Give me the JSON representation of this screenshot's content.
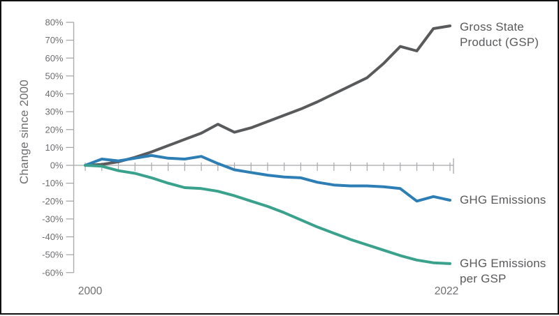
{
  "chart_data": {
    "type": "line",
    "title": "",
    "ylabel": "Change since 2000",
    "xlabel": "",
    "ylim": [
      -60,
      80
    ],
    "grid": false,
    "legend_position": "right-annotations",
    "x": [
      2000,
      2001,
      2002,
      2003,
      2004,
      2005,
      2006,
      2007,
      2008,
      2009,
      2010,
      2011,
      2012,
      2013,
      2014,
      2015,
      2016,
      2017,
      2018,
      2019,
      2020,
      2021,
      2022
    ],
    "x_axis_labels": [
      "2000",
      "2022"
    ],
    "y_tick_labels": [
      "80%",
      "70%",
      "60%",
      "50%",
      "40%",
      "30%",
      "20%",
      "10%",
      "0%",
      "-10%",
      "-20%",
      "-30%",
      "-40%",
      "-50%",
      "-60%"
    ],
    "y_tick_values": [
      80,
      70,
      60,
      50,
      40,
      30,
      20,
      10,
      0,
      -10,
      -20,
      -30,
      -40,
      -50,
      -60
    ],
    "series": [
      {
        "name": "Gross State Product (GSP)",
        "label": "Gross State\nProduct (GSP)",
        "color": "#595a5c",
        "values": [
          0,
          0.5,
          2,
          4.5,
          7.5,
          11,
          14.5,
          18,
          23,
          18.5,
          21,
          24.5,
          28,
          31.5,
          35.5,
          40,
          44.5,
          49,
          57,
          66.5,
          64,
          76.5,
          78
        ]
      },
      {
        "name": "GHG Emissions",
        "label": "GHG Emissions",
        "color": "#2d7eb5",
        "values": [
          0,
          3.5,
          2.5,
          4,
          5.5,
          4,
          3.5,
          5,
          1,
          -2.5,
          -4,
          -5.5,
          -6.5,
          -7,
          -9.5,
          -11,
          -11.5,
          -11.5,
          -12,
          -13,
          -20,
          -17.5,
          -19.5
        ]
      },
      {
        "name": "GHG Emissions per GSP",
        "label": "GHG Emissions\nper GSP",
        "color": "#3aa28c",
        "values": [
          0,
          -0.5,
          -3,
          -4.5,
          -7,
          -10,
          -12.5,
          -13,
          -14.5,
          -17,
          -20,
          -23,
          -26.5,
          -30.5,
          -34.5,
          -38,
          -41.5,
          -44.5,
          -47.5,
          -50.5,
          -53,
          -54.5,
          -55
        ]
      }
    ],
    "axis_color": "#a6a8ab",
    "tick_text_color": "#6d6e71"
  }
}
